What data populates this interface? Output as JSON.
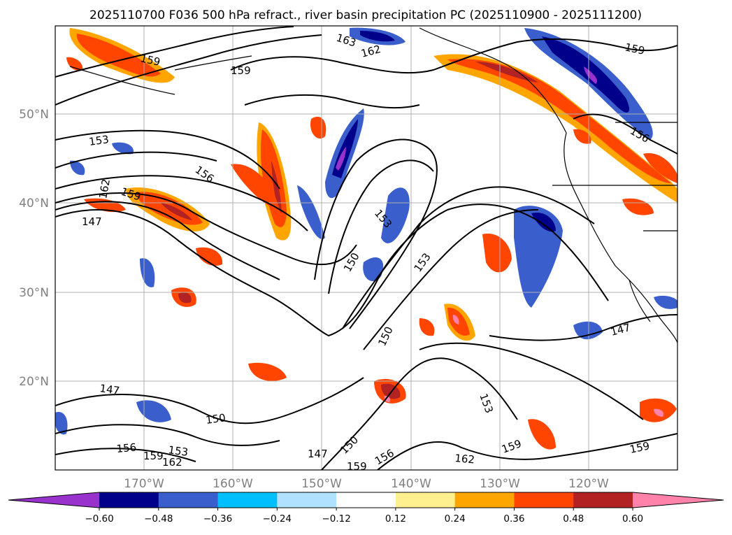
{
  "title": "2025110700 F036 500 hPa refract., river basin precipitation PC (2025110900 - 2025111200)",
  "lat_labels": [
    {
      "text": "50°N",
      "lat": 50
    },
    {
      "text": "40°N",
      "lat": 40
    },
    {
      "text": "30°N",
      "lat": 30
    },
    {
      "text": "20°N",
      "lat": 20
    }
  ],
  "lon_labels": [
    {
      "text": "170°W",
      "lon": -170
    },
    {
      "text": "160°W",
      "lon": -160
    },
    {
      "text": "150°W",
      "lon": -150
    },
    {
      "text": "140°W",
      "lon": -140
    },
    {
      "text": "130°W",
      "lon": -130
    },
    {
      "text": "120°W",
      "lon": -120
    }
  ],
  "map_extent": {
    "lon": [
      -180,
      -110
    ],
    "lat": [
      10,
      60
    ]
  },
  "colorbar": {
    "colors": [
      "#9932cc",
      "#00008b",
      "#3a5fcd",
      "#00bfff",
      "#b0e2ff",
      "#ffffff",
      "#fff08f",
      "#ffa500",
      "#ff4500",
      "#b22222",
      "#ff82ab"
    ],
    "tick_labels": [
      "−0.60",
      "−0.48",
      "−0.36",
      "−0.24",
      "−0.12",
      "0.12",
      "0.24",
      "0.36",
      "0.48",
      "0.60"
    ],
    "extend": "both"
  },
  "contour_labels": [
    {
      "text": "163"
    },
    {
      "text": "162"
    },
    {
      "text": "159"
    },
    {
      "text": "159"
    },
    {
      "text": "159"
    },
    {
      "text": "156"
    },
    {
      "text": "153"
    },
    {
      "text": "156"
    },
    {
      "text": "162"
    },
    {
      "text": "159"
    },
    {
      "text": "147"
    },
    {
      "text": "153"
    },
    {
      "text": "150"
    },
    {
      "text": "153"
    },
    {
      "text": "150"
    },
    {
      "text": "147"
    },
    {
      "text": "153"
    },
    {
      "text": "147"
    },
    {
      "text": "150"
    },
    {
      "text": "156"
    },
    {
      "text": "153"
    },
    {
      "text": "159"
    },
    {
      "text": "162"
    },
    {
      "text": "147"
    },
    {
      "text": "150"
    },
    {
      "text": "159"
    },
    {
      "text": "156"
    },
    {
      "text": "162"
    },
    {
      "text": "159"
    },
    {
      "text": "159"
    }
  ]
}
